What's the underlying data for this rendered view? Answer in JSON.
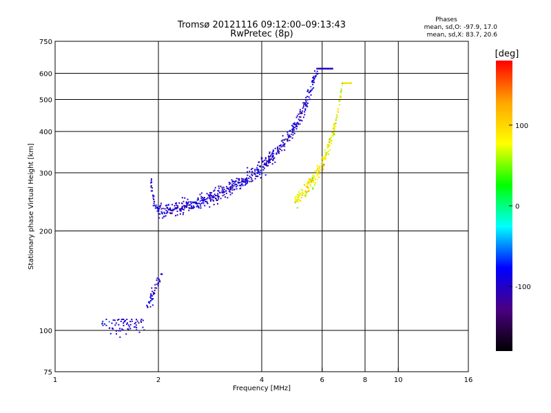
{
  "header": {
    "title_line1": "Tromsø 20121116 09:12:00–09:13:43",
    "title_line2": "RwPretec (8p)"
  },
  "stats": {
    "heading": "Phases",
    "line1": "mean, sd,O: -97.9, 17.0",
    "line2": "mean, sd,X:  83.7, 20.6"
  },
  "chart_data": {
    "type": "scatter",
    "xlabel": "Frequency [MHz]",
    "ylabel": "Stationary phase Virtual Height [km]",
    "xscale": "log",
    "yscale": "log",
    "xlim": [
      1,
      16
    ],
    "ylim": [
      75,
      750
    ],
    "xticks": [
      1,
      2,
      4,
      6,
      8,
      10,
      16
    ],
    "xtick_labels": [
      "1",
      "2",
      "4",
      "6",
      "8",
      "10",
      "16"
    ],
    "yticks": [
      75,
      100,
      200,
      300,
      400,
      500,
      600,
      750
    ],
    "ytick_labels": [
      "75",
      "100",
      "200",
      "300",
      "400",
      "500",
      "600",
      "750"
    ],
    "grid": true,
    "colorbar": {
      "label": "[deg]",
      "min": -180,
      "max": 180,
      "ticks": [
        100,
        0,
        -100
      ],
      "tick_labels": [
        "100",
        "0",
        "-100"
      ],
      "colors": [
        "#000000",
        "#4b0082",
        "#0000ff",
        "#00ffff",
        "#00ff00",
        "#ffff00",
        "#ffa500",
        "#ff0000"
      ]
    },
    "series": [
      {
        "segments": [
          {
            "f0": 1.9,
            "f1": 6.45,
            "h0": 228,
            "h1": 620,
            "shape": "o-trace",
            "n": 700,
            "phase_mean": -97.9,
            "phase_sd": 17.0
          },
          {
            "f0": 5.0,
            "f1": 7.3,
            "h0": 250,
            "h1": 560,
            "shape": "x-trace",
            "n": 280,
            "phase_mean": 83.7,
            "phase_sd": 20.6
          },
          {
            "f0": 1.36,
            "f1": 1.84,
            "h0": 100,
            "h1": 108,
            "shape": "e-layer",
            "n": 70,
            "phase_mean": -100,
            "phase_sd": 15
          },
          {
            "f0": 1.85,
            "f1": 2.05,
            "h0": 118,
            "h1": 148,
            "shape": "e-rise",
            "n": 45,
            "phase_mean": -100,
            "phase_sd": 15
          }
        ]
      }
    ]
  }
}
